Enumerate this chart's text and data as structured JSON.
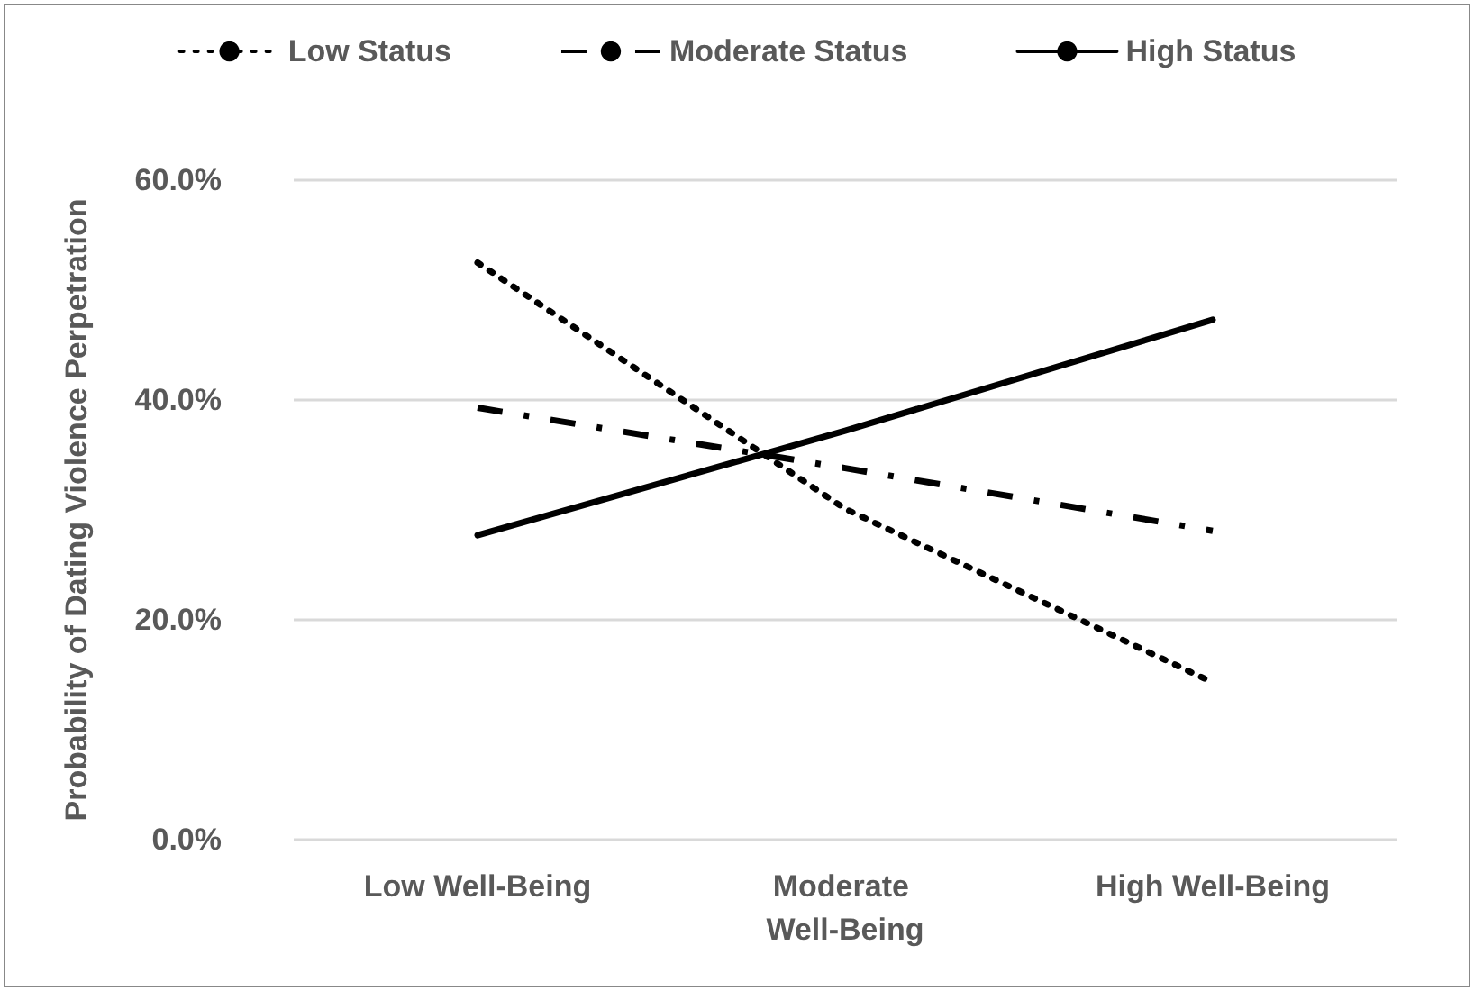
{
  "chart_data": {
    "type": "line",
    "ylabel": "Probability of Dating Violence Perpetration",
    "categories": [
      "Low Well-Being",
      "Moderate Well-Being",
      "High Well-Being"
    ],
    "series": [
      {
        "name": "Low Status",
        "color": "#000000",
        "line_style": "dotted",
        "values": [
          52.5,
          30.1,
          14.3
        ]
      },
      {
        "name": "Moderate Status",
        "color": "#000000",
        "line_style": "dashed",
        "values": [
          39.3,
          33.8,
          28.1
        ]
      },
      {
        "name": "High Status",
        "color": "#000000",
        "line_style": "solid",
        "values": [
          27.7,
          37.2,
          47.3
        ]
      }
    ],
    "ylim": [
      0,
      60
    ],
    "yticks": [
      {
        "value": 0,
        "label": "0.0%"
      },
      {
        "value": 20,
        "label": "20.0%"
      },
      {
        "value": 40,
        "label": "40.0%"
      },
      {
        "value": 60,
        "label": "60.0%"
      }
    ],
    "grid": "y",
    "legend": "top",
    "marker": "none"
  }
}
